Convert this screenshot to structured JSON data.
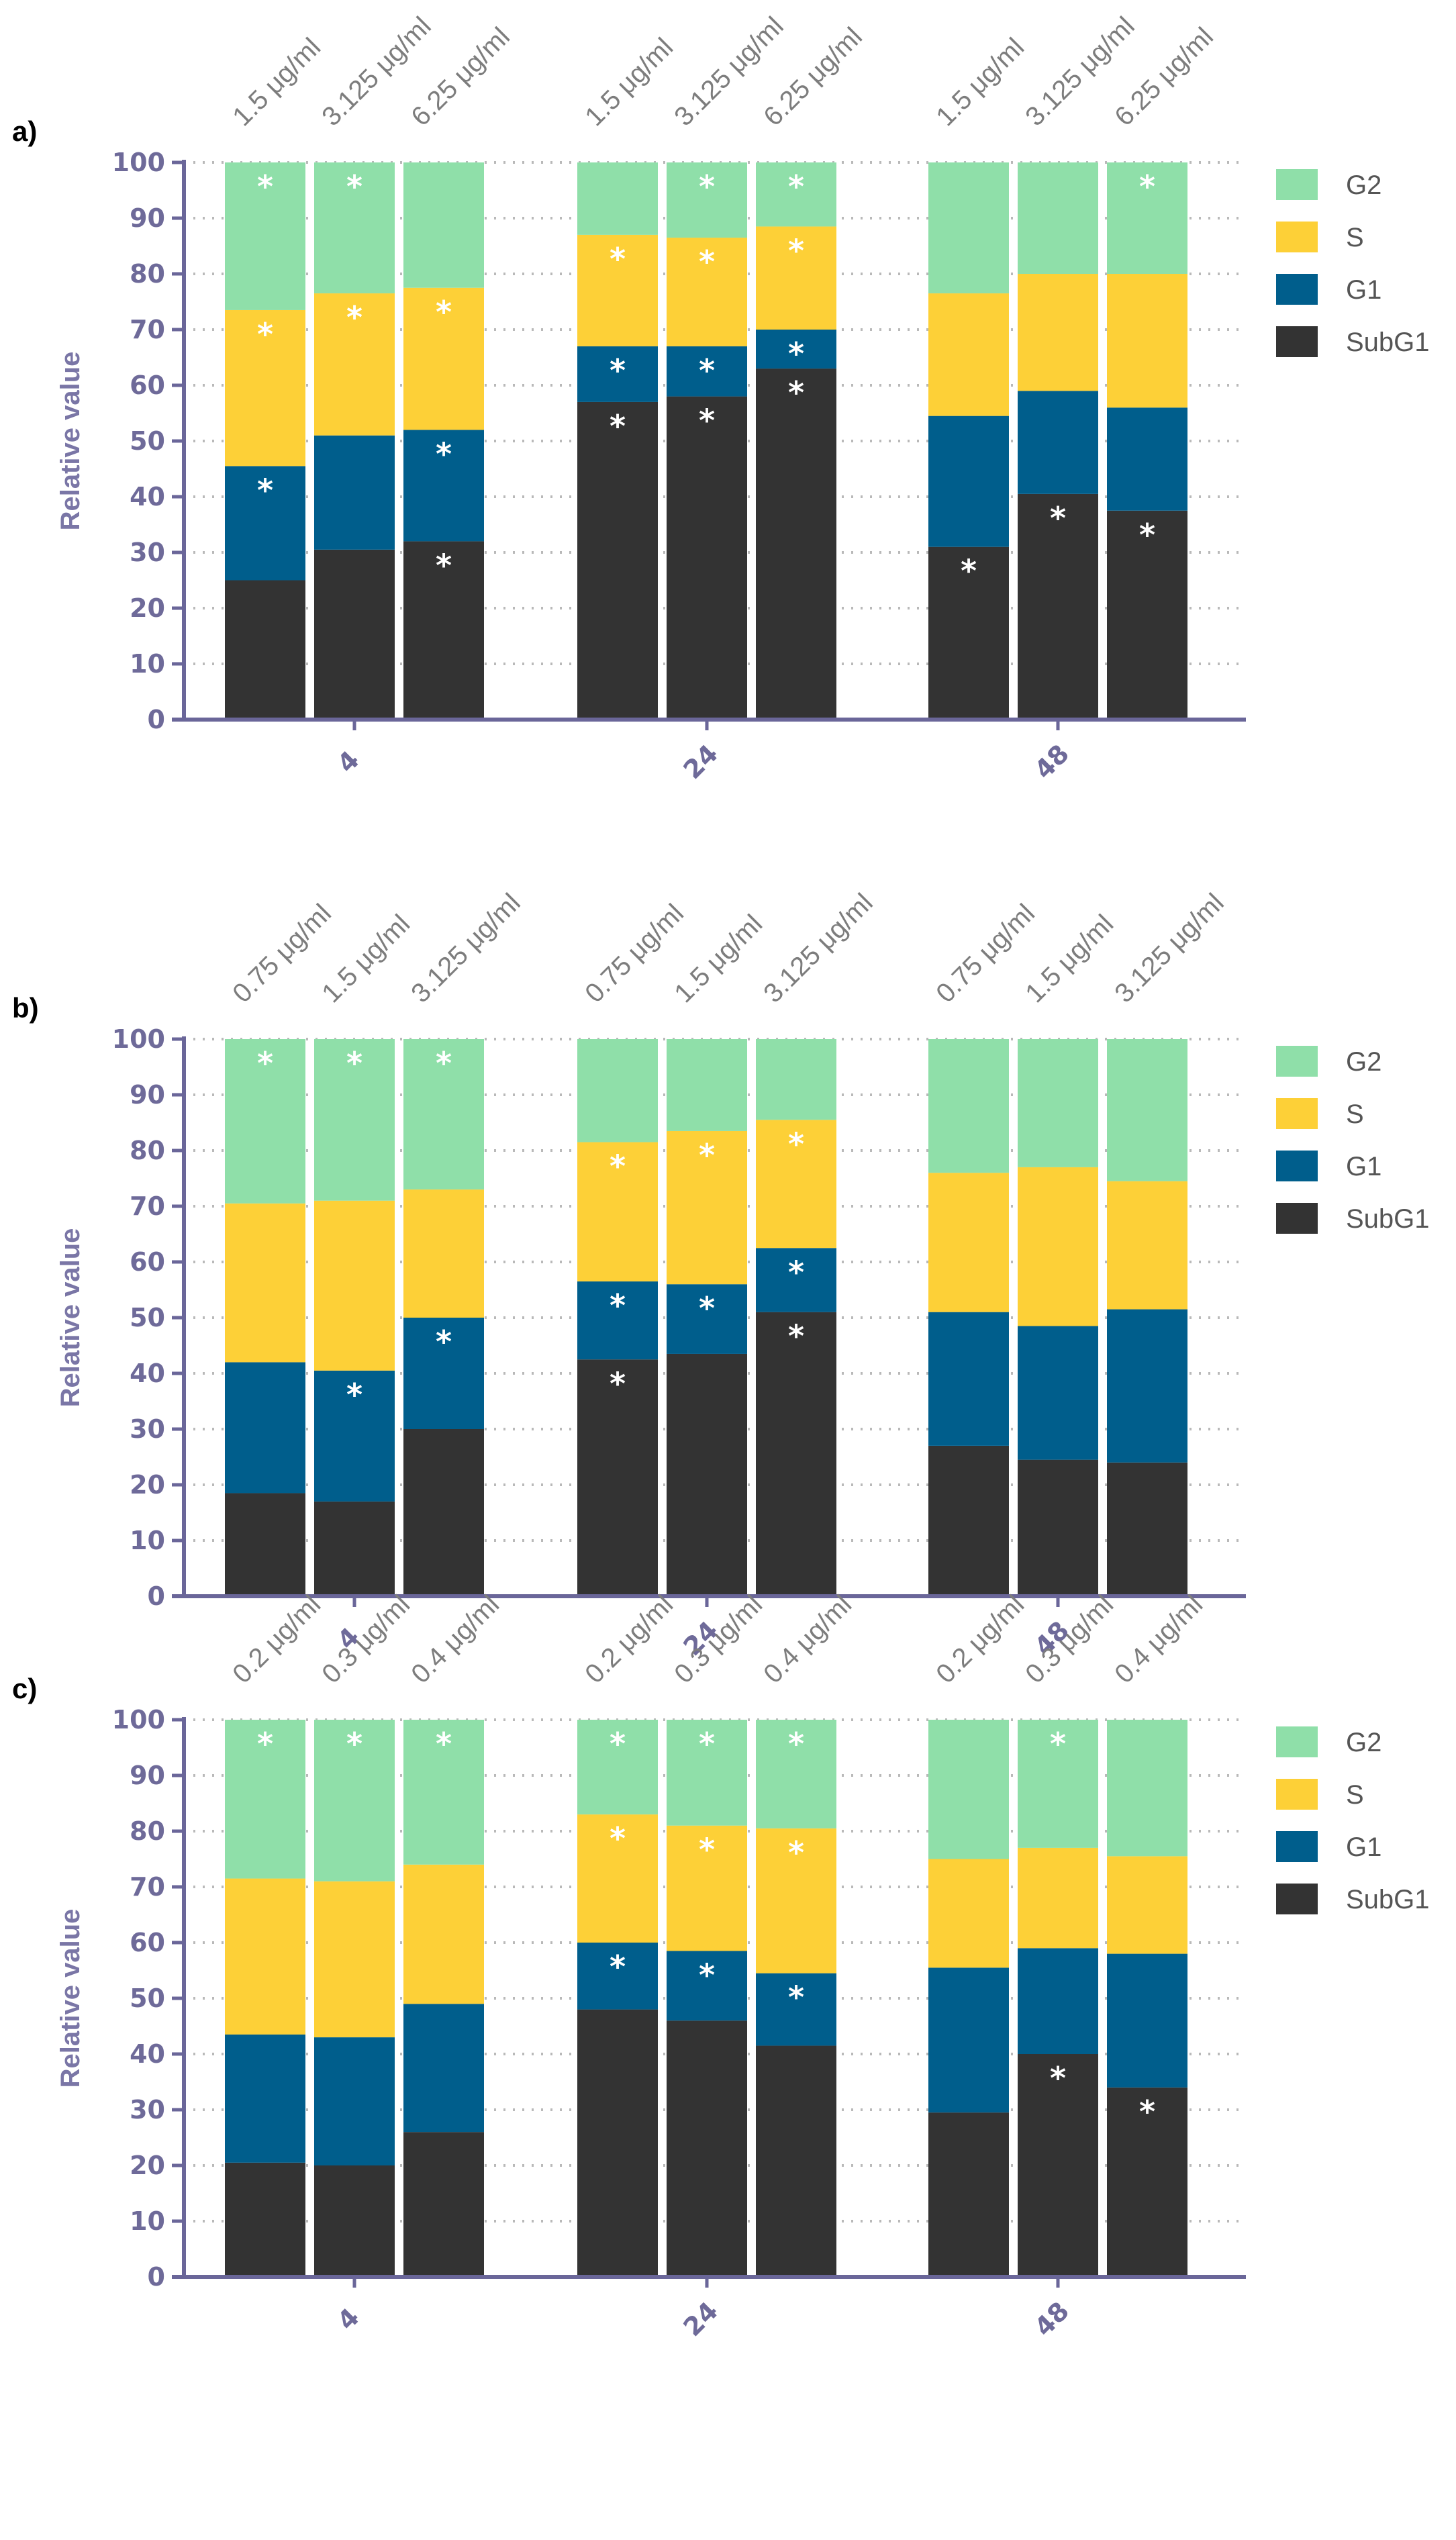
{
  "chart_data": [
    {
      "type": "bar",
      "stacked": true,
      "panel_label": "a)",
      "ylabel": "Relative value",
      "xlabel": "",
      "ylim": [
        0,
        100
      ],
      "yticks": [
        0,
        10,
        20,
        30,
        40,
        50,
        60,
        70,
        80,
        90,
        100
      ],
      "grid": true,
      "legend_position": "right",
      "categories": [
        "4",
        "24",
        "48"
      ],
      "concentrations": [
        "1.5 μg/ml",
        "3.125 μg/ml",
        "6.25 μg/ml"
      ],
      "series": [
        {
          "name": "SubG1",
          "color": "#333333",
          "values": [
            [
              25,
              30.5,
              32
            ],
            [
              57,
              58,
              63
            ],
            [
              31,
              40.5,
              37.5
            ]
          ],
          "significant": [
            [
              false,
              false,
              true
            ],
            [
              true,
              true,
              true
            ],
            [
              true,
              true,
              true
            ]
          ]
        },
        {
          "name": "G1",
          "color": "#005e8c",
          "values": [
            [
              20.5,
              20.5,
              20
            ],
            [
              10,
              9,
              7
            ],
            [
              23.5,
              18.5,
              18.5
            ]
          ],
          "significant": [
            [
              true,
              false,
              true
            ],
            [
              true,
              true,
              true
            ],
            [
              false,
              false,
              false
            ]
          ]
        },
        {
          "name": "S",
          "color": "#fdd037",
          "values": [
            [
              28,
              25.5,
              25.5
            ],
            [
              20,
              19.5,
              18.5
            ],
            [
              22,
              21,
              24
            ]
          ],
          "significant": [
            [
              true,
              true,
              true
            ],
            [
              true,
              true,
              true
            ],
            [
              false,
              false,
              false
            ]
          ]
        },
        {
          "name": "G2",
          "color": "#8fdfa9",
          "values": [
            [
              26.5,
              23.5,
              22.5
            ],
            [
              13,
              13.5,
              11.5
            ],
            [
              23.5,
              20,
              20
            ]
          ],
          "significant": [
            [
              true,
              true,
              false
            ],
            [
              false,
              true,
              true
            ],
            [
              false,
              false,
              true
            ]
          ]
        }
      ]
    },
    {
      "type": "bar",
      "stacked": true,
      "panel_label": "b)",
      "ylabel": "Relative value",
      "xlabel": "",
      "ylim": [
        0,
        100
      ],
      "yticks": [
        0,
        10,
        20,
        30,
        40,
        50,
        60,
        70,
        80,
        90,
        100
      ],
      "grid": true,
      "legend_position": "right",
      "categories": [
        "4",
        "24",
        "48"
      ],
      "concentrations": [
        "0.75 μg/ml",
        "1.5 μg/ml",
        "3.125 μg/ml"
      ],
      "series": [
        {
          "name": "SubG1",
          "color": "#333333",
          "values": [
            [
              18.5,
              17,
              30
            ],
            [
              42.5,
              43.5,
              51
            ],
            [
              27,
              24.5,
              24
            ]
          ],
          "significant": [
            [
              false,
              false,
              false
            ],
            [
              true,
              false,
              true
            ],
            [
              false,
              false,
              false
            ]
          ]
        },
        {
          "name": "G1",
          "color": "#005e8c",
          "values": [
            [
              23.5,
              23.5,
              20
            ],
            [
              14,
              12.5,
              11.5
            ],
            [
              24,
              24,
              27.5
            ]
          ],
          "significant": [
            [
              false,
              true,
              true
            ],
            [
              true,
              true,
              true
            ],
            [
              false,
              false,
              false
            ]
          ]
        },
        {
          "name": "S",
          "color": "#fdd037",
          "values": [
            [
              28.5,
              30.5,
              23
            ],
            [
              25,
              27.5,
              23
            ],
            [
              25,
              28.5,
              23
            ]
          ],
          "significant": [
            [
              false,
              false,
              false
            ],
            [
              true,
              true,
              true
            ],
            [
              false,
              false,
              false
            ]
          ]
        },
        {
          "name": "G2",
          "color": "#8fdfa9",
          "values": [
            [
              29.5,
              29,
              27
            ],
            [
              18.5,
              16.5,
              14.5
            ],
            [
              24,
              23,
              25.5
            ]
          ],
          "significant": [
            [
              true,
              true,
              true
            ],
            [
              false,
              false,
              false
            ],
            [
              false,
              false,
              false
            ]
          ]
        }
      ]
    },
    {
      "type": "bar",
      "stacked": true,
      "panel_label": "c)",
      "ylabel": "Relative value",
      "xlabel": "",
      "ylim": [
        0,
        100
      ],
      "yticks": [
        0,
        10,
        20,
        30,
        40,
        50,
        60,
        70,
        80,
        90,
        100
      ],
      "grid": true,
      "legend_position": "right",
      "categories": [
        "4",
        "24",
        "48"
      ],
      "concentrations": [
        "0.2 μg/ml",
        "0.3 μg/ml",
        "0.4 μg/ml"
      ],
      "series": [
        {
          "name": "SubG1",
          "color": "#333333",
          "values": [
            [
              20.5,
              20,
              26
            ],
            [
              48,
              46,
              41.5
            ],
            [
              29.5,
              40,
              34
            ]
          ],
          "significant": [
            [
              false,
              false,
              false
            ],
            [
              false,
              false,
              false
            ],
            [
              false,
              true,
              true
            ]
          ]
        },
        {
          "name": "G1",
          "color": "#005e8c",
          "values": [
            [
              23,
              23,
              23
            ],
            [
              12,
              12.5,
              13
            ],
            [
              26,
              19,
              24
            ]
          ],
          "significant": [
            [
              false,
              false,
              false
            ],
            [
              true,
              true,
              true
            ],
            [
              false,
              false,
              false
            ]
          ]
        },
        {
          "name": "S",
          "color": "#fdd037",
          "values": [
            [
              28,
              28,
              25
            ],
            [
              23,
              22.5,
              26
            ],
            [
              19.5,
              18,
              17.5
            ]
          ],
          "significant": [
            [
              false,
              false,
              false
            ],
            [
              true,
              true,
              true
            ],
            [
              false,
              false,
              false
            ]
          ]
        },
        {
          "name": "G2",
          "color": "#8fdfa9",
          "values": [
            [
              28.5,
              29,
              26
            ],
            [
              17,
              19,
              19.5
            ],
            [
              25,
              23,
              24.5
            ]
          ],
          "significant": [
            [
              true,
              true,
              true
            ],
            [
              true,
              true,
              true
            ],
            [
              false,
              true,
              false
            ]
          ]
        }
      ]
    }
  ]
}
